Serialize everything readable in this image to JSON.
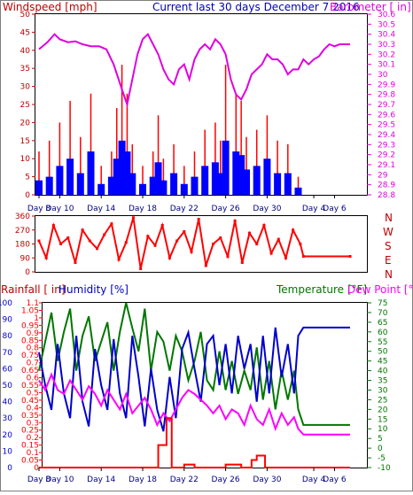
{
  "header": {
    "title": "Current last 30 days December 7 2016",
    "left_label": "Windspeed [mph]",
    "right_label": "Barometer [ in]"
  },
  "direction_letters": [
    "N",
    "W",
    "S",
    "E",
    "N"
  ],
  "panel3_labels": {
    "rainfall": "Rainfall [ in]",
    "humidity": "Humidity [%]",
    "temperature": "Temperature [°F]",
    "dew_point": "Dew Point [°F]"
  },
  "colors": {
    "windspeed_axis": "#c00000",
    "barometer": "#e000e0",
    "wind_avg": "#0000ff",
    "gust": "#ff0000",
    "direction": "#ff0000",
    "humidity": "#0000cc",
    "temperature": "#007700",
    "dew_point": "#ff00ff",
    "rainfall": "#ff0000",
    "day_labels": "#000080"
  },
  "chart_data": [
    {
      "type": "line",
      "title": "Current last 30 days December 7 2016",
      "x_tick_labels": [
        "Day 8",
        "Day 10",
        "Day 14",
        "Day 18",
        "Day 22",
        "Day 26",
        "Day 30",
        "Day 4",
        "Day 6"
      ],
      "xlim_days": [
        0,
        30
      ],
      "y_left": {
        "label": "Windspeed [mph]",
        "ylim": [
          0,
          50
        ],
        "ticks": [
          0,
          5,
          10,
          15,
          20,
          25,
          30,
          35,
          40,
          45,
          50
        ]
      },
      "y_right": {
        "label": "Barometer [ in]",
        "ylim": [
          28.8,
          30.6
        ],
        "ticks": [
          "28.8",
          "28.9",
          "29",
          "29.1",
          "29.2",
          "29.3",
          "29.4",
          "29.5",
          "29.6",
          "29.7",
          "29.8",
          "29.9",
          "30",
          "30.1",
          "30.2",
          "30.3",
          "30.4",
          "30.5",
          "30.6"
        ]
      },
      "series": [
        {
          "name": "Barometer [ in]",
          "axis": "right",
          "x": [
            0,
            0.8,
            1.5,
            2,
            2.8,
            3.5,
            4.2,
            5,
            5.8,
            6.5,
            7.2,
            8,
            8.5,
            9,
            9.5,
            10,
            10.5,
            11,
            11.5,
            12,
            12.5,
            13,
            13.5,
            14,
            14.5,
            15,
            15.5,
            16,
            16.5,
            17,
            17.5,
            18,
            18.5,
            19,
            19.5,
            20,
            20.5,
            21,
            21.5,
            22,
            22.5,
            23,
            23.5,
            24,
            24.5,
            25,
            25.5,
            26,
            26.5,
            27,
            27.5,
            28,
            28.5,
            29,
            30
          ],
          "y": [
            30.25,
            30.32,
            30.4,
            30.35,
            30.32,
            30.33,
            30.3,
            30.28,
            30.28,
            30.25,
            30.1,
            29.85,
            29.7,
            29.95,
            30.2,
            30.35,
            30.4,
            30.3,
            30.2,
            30.05,
            29.95,
            29.9,
            30.05,
            30.1,
            29.95,
            30.15,
            30.25,
            30.3,
            30.25,
            30.35,
            30.3,
            30.2,
            29.95,
            29.8,
            29.75,
            29.85,
            30.0,
            30.05,
            30.1,
            30.2,
            30.15,
            30.15,
            30.1,
            30.0,
            30.05,
            30.05,
            30.15,
            30.1,
            30.15,
            30.18,
            30.25,
            30.3,
            30.28,
            30.3,
            30.3
          ]
        },
        {
          "name": "Gust",
          "axis": "left",
          "x": [
            0,
            1,
            2,
            3,
            4,
            5,
            6,
            7,
            7.5,
            8,
            8.5,
            9,
            10,
            11,
            11.5,
            12,
            13,
            14,
            15,
            16,
            17,
            17.5,
            18,
            19,
            19.5,
            20,
            21,
            22,
            23,
            24,
            25
          ],
          "y": [
            12,
            15,
            20,
            26,
            16,
            28,
            8,
            12,
            24,
            36,
            28,
            14,
            8,
            12,
            22,
            10,
            14,
            8,
            12,
            18,
            20,
            15,
            36,
            28,
            26,
            16,
            18,
            22,
            15,
            14,
            5
          ]
        },
        {
          "name": "Windspeed",
          "axis": "left",
          "x": [
            0,
            1,
            2,
            3,
            4,
            5,
            6,
            7,
            7.5,
            8,
            8.5,
            9,
            10,
            11,
            11.5,
            12,
            13,
            14,
            15,
            16,
            17,
            17.5,
            18,
            19,
            19.5,
            20,
            21,
            22,
            23,
            24,
            25
          ],
          "y": [
            4,
            5,
            8,
            10,
            6,
            12,
            3,
            5,
            10,
            15,
            12,
            6,
            3,
            5,
            9,
            4,
            6,
            3,
            5,
            8,
            9,
            6,
            15,
            12,
            11,
            7,
            8,
            10,
            6,
            6,
            2
          ]
        }
      ]
    },
    {
      "type": "scatter",
      "title": "",
      "ylim": [
        0,
        360
      ],
      "ticks": [
        0,
        90,
        180,
        270,
        360
      ],
      "series": [
        {
          "name": "Wind Direction",
          "x": [
            0,
            0.7,
            1.4,
            2.1,
            2.8,
            3.5,
            4.2,
            4.9,
            5.6,
            6.3,
            7,
            7.7,
            8.4,
            9.1,
            9.8,
            10.5,
            11.2,
            11.9,
            12.6,
            13.3,
            14,
            14.7,
            15.4,
            16.1,
            16.8,
            17.5,
            18.2,
            18.9,
            19.6,
            20.3,
            21,
            21.7,
            22.4,
            23.1,
            23.8,
            24.5,
            25.2,
            25.5,
            30
          ],
          "y": [
            200,
            90,
            300,
            180,
            220,
            60,
            270,
            200,
            150,
            240,
            310,
            80,
            190,
            350,
            20,
            230,
            170,
            300,
            90,
            200,
            260,
            130,
            340,
            40,
            180,
            220,
            100,
            330,
            60,
            250,
            180,
            300,
            120,
            210,
            90,
            270,
            180,
            100,
            100
          ]
        }
      ]
    },
    {
      "type": "line",
      "title": "",
      "x_tick_labels": [
        "Day 8",
        "Day 10",
        "Day 14",
        "Day 18",
        "Day 22",
        "Day 26",
        "Day 30",
        "Day 4",
        "Day 6"
      ],
      "xlim_days": [
        0,
        30
      ],
      "y_left": {
        "label": "Humidity [%]",
        "ylim": [
          0,
          100
        ]
      },
      "y_left_rain": {
        "label": "Rainfall [ in]",
        "ylim": [
          0,
          1.1
        ],
        "ticks": [
          "0",
          "0.05",
          "0.1",
          "0.15",
          "0.2",
          "0.25",
          "0.3",
          "0.35",
          "0.4",
          "0.45",
          "0.5",
          "0.55",
          "0.6",
          "0.65",
          "0.7",
          "0.75",
          "0.8",
          "0.85",
          "0.9",
          "0.95",
          "1",
          "1.05",
          "1.1"
        ]
      },
      "y_right": {
        "label": "Temperature [°F]",
        "ylim": [
          -10,
          75
        ],
        "ticks": [
          -10,
          -5,
          0,
          5,
          10,
          15,
          20,
          25,
          30,
          35,
          40,
          45,
          50,
          55,
          60,
          65,
          70,
          75
        ]
      },
      "series": [
        {
          "name": "Humidity [%]",
          "axis": "left",
          "x": [
            0,
            0.6,
            1.2,
            1.8,
            2.4,
            3,
            3.6,
            4.2,
            4.8,
            5.4,
            6,
            6.6,
            7.2,
            7.8,
            8.4,
            9,
            9.6,
            10.2,
            10.8,
            11.4,
            12,
            12.6,
            13.2,
            13.8,
            14.4,
            15,
            15.6,
            16.2,
            16.8,
            17.4,
            18,
            18.6,
            19.2,
            19.8,
            20.4,
            21,
            21.6,
            22.2,
            22.8,
            23.4,
            24,
            24.6,
            25,
            25.5,
            30
          ],
          "y": [
            70,
            50,
            35,
            75,
            45,
            30,
            80,
            40,
            25,
            72,
            50,
            35,
            78,
            45,
            30,
            80,
            55,
            25,
            60,
            35,
            22,
            55,
            30,
            72,
            82,
            60,
            40,
            75,
            80,
            50,
            75,
            45,
            80,
            60,
            75,
            40,
            80,
            45,
            85,
            55,
            75,
            45,
            80,
            85,
            85
          ]
        },
        {
          "name": "Temperature [°F]",
          "axis": "right",
          "x": [
            0,
            0.6,
            1.2,
            1.8,
            2.4,
            3,
            3.6,
            4.2,
            4.8,
            5.4,
            6,
            6.6,
            7.2,
            7.8,
            8.4,
            9,
            9.6,
            10.2,
            10.8,
            11.4,
            12,
            12.6,
            13.2,
            13.8,
            14.4,
            15,
            15.6,
            16.2,
            16.8,
            17.4,
            18,
            18.6,
            19.2,
            19.8,
            20.4,
            21,
            21.6,
            22.2,
            22.8,
            23.4,
            24,
            24.6,
            25,
            25.5,
            30
          ],
          "y": [
            40,
            55,
            70,
            45,
            60,
            72,
            40,
            58,
            68,
            45,
            55,
            65,
            40,
            60,
            75,
            62,
            50,
            72,
            40,
            60,
            55,
            40,
            58,
            50,
            35,
            45,
            60,
            35,
            30,
            50,
            30,
            45,
            28,
            40,
            30,
            52,
            25,
            45,
            20,
            40,
            25,
            40,
            20,
            12,
            12
          ]
        },
        {
          "name": "Dew Point [°F]",
          "axis": "right",
          "x": [
            0,
            0.6,
            1.2,
            1.8,
            2.4,
            3,
            3.6,
            4.2,
            4.8,
            5.4,
            6,
            6.6,
            7.2,
            7.8,
            8.4,
            9,
            9.6,
            10.2,
            10.8,
            11.4,
            12,
            12.6,
            13.2,
            13.8,
            14.4,
            15,
            15.6,
            16.2,
            16.8,
            17.4,
            18,
            18.6,
            19.2,
            19.8,
            20.4,
            21,
            21.6,
            22.2,
            22.8,
            23.4,
            24,
            24.6,
            25,
            25.5,
            30
          ],
          "y": [
            35,
            30,
            38,
            30,
            28,
            35,
            30,
            25,
            32,
            28,
            22,
            30,
            25,
            20,
            28,
            18,
            22,
            26,
            20,
            12,
            18,
            14,
            20,
            26,
            30,
            28,
            25,
            22,
            18,
            22,
            15,
            20,
            18,
            12,
            22,
            15,
            12,
            20,
            10,
            18,
            12,
            16,
            10,
            7,
            7
          ]
        },
        {
          "name": "Rainfall [ in]",
          "axis": "left_rain",
          "x": [
            0,
            11.5,
            11.5,
            12.3,
            12.3,
            12.8,
            12.8,
            14,
            14,
            15,
            15,
            18,
            18,
            19.5,
            19.5,
            20.5,
            20.5,
            21,
            21,
            21.8,
            21.8,
            22.5,
            22.5,
            30
          ],
          "y": [
            0,
            0,
            0.15,
            0.15,
            0.33,
            0.33,
            0,
            0,
            0.02,
            0.02,
            0,
            0,
            0.02,
            0.02,
            0,
            0,
            0.05,
            0.05,
            0.08,
            0.08,
            0,
            0,
            0,
            0
          ]
        }
      ]
    }
  ]
}
